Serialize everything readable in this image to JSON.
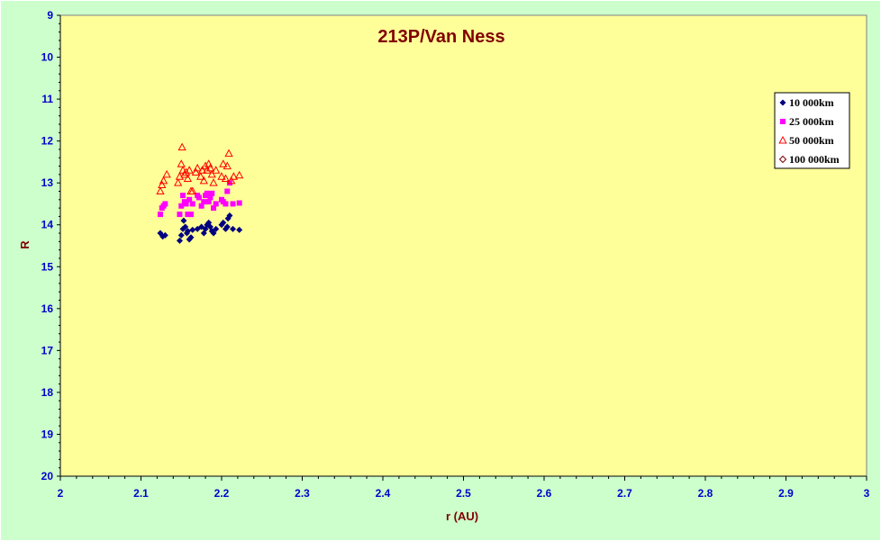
{
  "chart_data": {
    "type": "scatter",
    "title": "213P/Van Ness",
    "xlabel": "r (AU)",
    "ylabel": "R",
    "xlim": [
      2,
      3
    ],
    "ylim": [
      9,
      20
    ],
    "y_inverted": true,
    "x_ticks": [
      "2",
      "2.1",
      "2.2",
      "2.3",
      "2.4",
      "2.5",
      "2.6",
      "2.7",
      "2.8",
      "2.9",
      "3"
    ],
    "y_ticks": [
      "9",
      "10",
      "11",
      "12",
      "13",
      "14",
      "15",
      "16",
      "17",
      "18",
      "19",
      "20"
    ],
    "grid": false,
    "legend_position": "top-right",
    "colors": {
      "plot_background": "#ffff99",
      "page_background": "#ccffcc",
      "tick_labels": "#0000cc",
      "title": "#800000"
    },
    "series": [
      {
        "name": "10 000km",
        "marker": "diamond",
        "color": "#000080",
        "x": [
          2.124,
          2.127,
          2.13,
          2.148,
          2.15,
          2.152,
          2.153,
          2.155,
          2.157,
          2.158,
          2.16,
          2.162,
          2.164,
          2.17,
          2.175,
          2.178,
          2.18,
          2.182,
          2.184,
          2.186,
          2.188,
          2.19,
          2.193,
          2.2,
          2.202,
          2.205,
          2.207,
          2.208,
          2.21,
          2.214,
          2.222
        ],
        "y": [
          14.2,
          14.28,
          14.25,
          14.38,
          14.25,
          14.1,
          13.9,
          14.05,
          14.2,
          14.15,
          14.35,
          14.3,
          14.12,
          14.1,
          14.05,
          14.2,
          14.1,
          14.0,
          13.95,
          14.05,
          14.15,
          14.2,
          14.1,
          14.0,
          13.95,
          14.1,
          14.05,
          13.85,
          13.78,
          14.1,
          14.12
        ]
      },
      {
        "name": "25 000km",
        "marker": "square",
        "color": "#ff00ff",
        "x": [
          2.124,
          2.126,
          2.128,
          2.13,
          2.148,
          2.15,
          2.152,
          2.154,
          2.156,
          2.158,
          2.16,
          2.162,
          2.164,
          2.17,
          2.172,
          2.175,
          2.178,
          2.18,
          2.182,
          2.184,
          2.186,
          2.188,
          2.19,
          2.193,
          2.2,
          2.202,
          2.205,
          2.207,
          2.21,
          2.214,
          2.222
        ],
        "y": [
          13.75,
          13.6,
          13.55,
          13.5,
          13.75,
          13.55,
          13.3,
          13.45,
          13.5,
          13.75,
          13.4,
          13.75,
          13.5,
          13.3,
          13.35,
          13.55,
          13.45,
          13.3,
          13.25,
          13.45,
          13.35,
          13.25,
          13.6,
          13.5,
          13.4,
          13.45,
          13.5,
          13.2,
          13.0,
          13.5,
          13.48
        ]
      },
      {
        "name": "50 000km",
        "marker": "triangle",
        "color": "#ff0000",
        "x": [
          2.124,
          2.126,
          2.128,
          2.132,
          2.146,
          2.148,
          2.15,
          2.151,
          2.152,
          2.154,
          2.156,
          2.158,
          2.16,
          2.162,
          2.164,
          2.168,
          2.17,
          2.174,
          2.176,
          2.178,
          2.18,
          2.182,
          2.184,
          2.186,
          2.188,
          2.19,
          2.193,
          2.2,
          2.202,
          2.205,
          2.207,
          2.209,
          2.212,
          2.215,
          2.222
        ],
        "y": [
          13.2,
          13.05,
          12.95,
          12.8,
          13.0,
          12.85,
          12.55,
          12.15,
          12.7,
          12.8,
          12.75,
          12.9,
          12.7,
          13.2,
          13.2,
          12.75,
          12.65,
          12.85,
          12.7,
          12.95,
          12.6,
          12.7,
          12.55,
          12.65,
          12.8,
          13.0,
          12.7,
          12.85,
          12.55,
          12.9,
          12.6,
          12.3,
          12.95,
          12.85,
          12.82
        ]
      },
      {
        "name": "100 000km",
        "marker": "circle",
        "color": "#800000",
        "x": [],
        "y": []
      }
    ]
  }
}
